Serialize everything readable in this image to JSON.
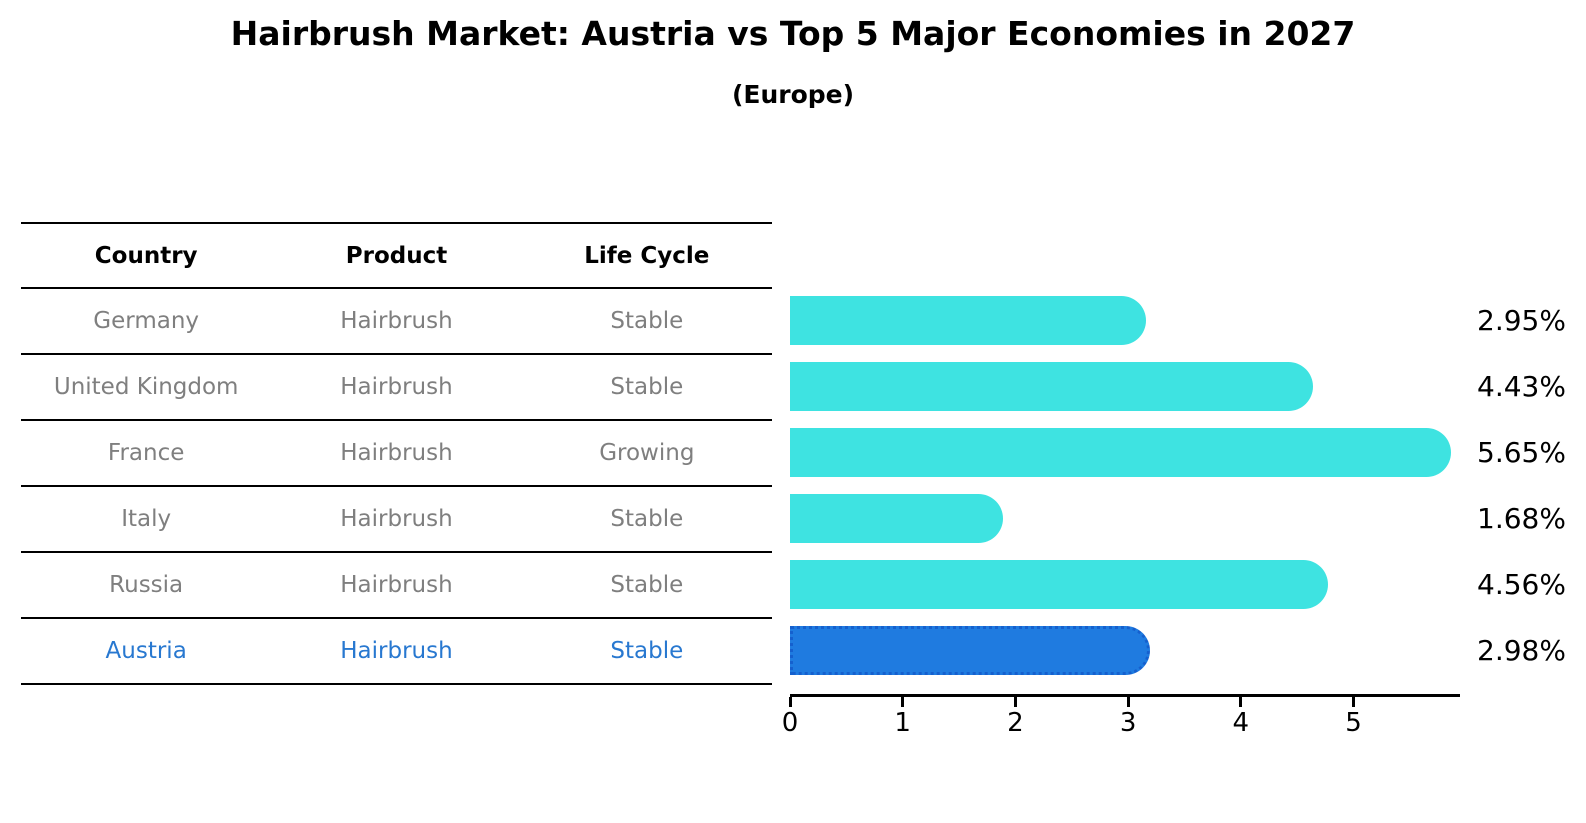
{
  "chart_data": {
    "type": "bar",
    "orientation": "horizontal",
    "title": "Hairbrush Market: Austria vs Top 5 Major Economies in 2027",
    "subtitle": "(Europe)",
    "categories": [
      "Germany",
      "United Kingdom",
      "France",
      "Italy",
      "Russia",
      "Austria"
    ],
    "values": [
      2.95,
      4.43,
      5.65,
      1.68,
      4.56,
      2.98
    ],
    "value_labels": [
      "2.95%",
      "4.43%",
      "5.65%",
      "1.68%",
      "4.56%",
      "2.98%"
    ],
    "unit": "%",
    "x_ticks": [
      0,
      1,
      2,
      3,
      4,
      5
    ],
    "xlim": [
      0,
      5.95
    ],
    "highlight_index": 5,
    "grid": false,
    "legend": null
  },
  "table": {
    "headers": [
      "Country",
      "Product",
      "Life Cycle"
    ],
    "rows": [
      {
        "country": "Germany",
        "product": "Hairbrush",
        "life_cycle": "Stable",
        "highlight": false
      },
      {
        "country": "United Kingdom",
        "product": "Hairbrush",
        "life_cycle": "Stable",
        "highlight": false
      },
      {
        "country": "France",
        "product": "Hairbrush",
        "life_cycle": "Growing",
        "highlight": false
      },
      {
        "country": "Italy",
        "product": "Hairbrush",
        "life_cycle": "Stable",
        "highlight": false
      },
      {
        "country": "Russia",
        "product": "Hairbrush",
        "life_cycle": "Stable",
        "highlight": false
      },
      {
        "country": "Austria",
        "product": "Hairbrush",
        "life_cycle": "Stable",
        "highlight": true
      }
    ]
  },
  "colors": {
    "bar": "#3EE3E1",
    "highlight_bar": "#1F7BE0",
    "highlight_bar_border": "#1560CE",
    "highlight_text": "#2878D0",
    "table_text": "#7F7F7F",
    "heading_text": "#000000",
    "line": "#000000"
  }
}
